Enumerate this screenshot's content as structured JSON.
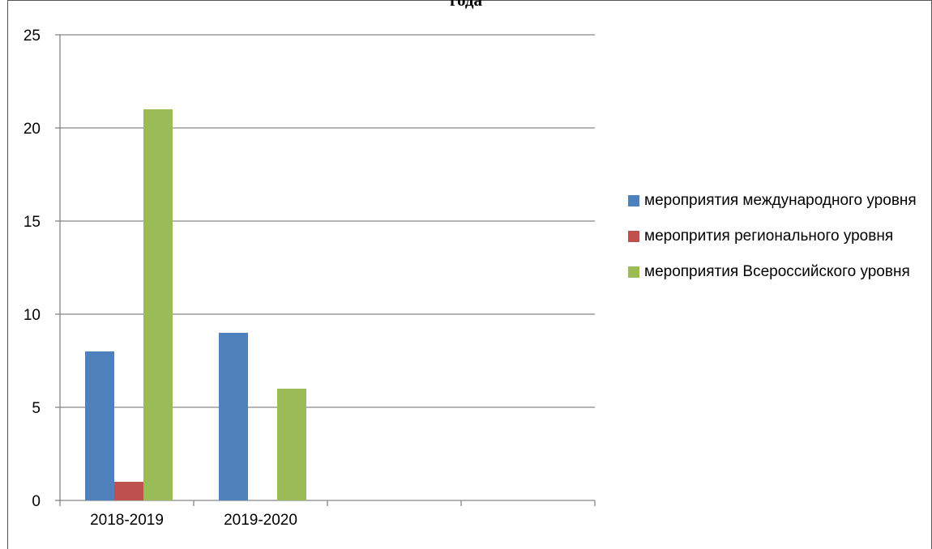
{
  "title_fragment": "года",
  "colors": {
    "series_1": "#4F81BD",
    "series_2": "#C0504D",
    "series_3": "#9BBB59",
    "grid": "#868686",
    "axis": "#868686"
  },
  "chart_data": {
    "type": "bar",
    "categories": [
      "2018-2019",
      "2019-2020",
      "",
      ""
    ],
    "series": [
      {
        "name": "мероприятия международного уровня",
        "values": [
          8,
          9,
          0,
          0
        ]
      },
      {
        "name": "меропрития регионального уровня",
        "values": [
          1,
          0,
          0,
          0
        ]
      },
      {
        "name": "мероприятия Всероссийского уровня",
        "values": [
          21,
          6,
          0,
          0
        ]
      }
    ],
    "ylim": [
      0,
      25
    ],
    "yticks": [
      0,
      5,
      10,
      15,
      20,
      25
    ],
    "grid": true,
    "legend": "right"
  }
}
